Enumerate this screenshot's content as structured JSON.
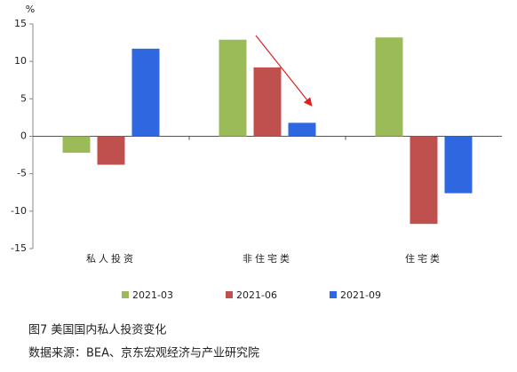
{
  "chart_data": {
    "type": "bar",
    "y_label": "%",
    "categories": [
      "私人投资",
      "非住宅类",
      "住宅类"
    ],
    "series": [
      {
        "name": "2021-03",
        "color": "#9bbb59",
        "values": [
          -2.2,
          12.9,
          13.2
        ]
      },
      {
        "name": "2021-06",
        "color": "#c0504d",
        "values": [
          -3.8,
          9.2,
          -11.7
        ]
      },
      {
        "name": "2021-09",
        "color": "#2e67e0",
        "values": [
          11.7,
          1.8,
          -7.6
        ]
      }
    ],
    "ylim": [
      -15,
      15
    ],
    "yticks": [
      -15,
      -10,
      -5,
      0,
      5,
      10,
      15
    ],
    "caption": "图7 美国国内私人投资变化",
    "source": "数据来源：BEA、京东宏观经济与产业研究院"
  }
}
